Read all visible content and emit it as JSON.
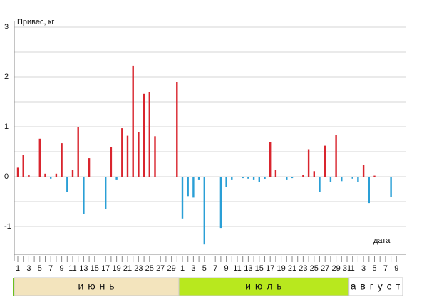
{
  "chart_data": {
    "type": "bar",
    "y_label": "Привес, кг",
    "x_label": "дата",
    "ylim": [
      -1.5,
      3
    ],
    "yticks": [
      -1,
      0,
      1,
      2,
      3
    ],
    "yminor": [
      -0.5,
      0.5,
      1.5,
      2.5
    ],
    "grid": true,
    "pos_color": "#d9252e",
    "neg_color": "#2a9fd6",
    "months": [
      {
        "label": "и ю н ь",
        "color": "#f3e4bd"
      },
      {
        "label": "и ю л ь",
        "color": "#b8e81e"
      },
      {
        "label": "а в г у с т",
        "color": "#ffffff"
      }
    ],
    "categories": [
      "1",
      null,
      "3",
      null,
      "5",
      null,
      "7",
      null,
      "9",
      null,
      "11",
      null,
      "13",
      null,
      "15",
      null,
      "17",
      null,
      "19",
      null,
      "21",
      null,
      "23",
      null,
      "25",
      null,
      "27",
      null,
      "29",
      null,
      "1",
      null,
      "3",
      null,
      "5",
      null,
      "7",
      null,
      "9",
      null,
      "11",
      null,
      "13",
      null,
      "15",
      null,
      "17",
      null,
      "19",
      null,
      "21",
      null,
      "23",
      null,
      "25",
      null,
      "27",
      null,
      "29",
      null,
      "31",
      "1",
      null,
      "3",
      null,
      "5",
      null,
      "7",
      null,
      "9"
    ],
    "values": [
      0.18,
      0.43,
      0.04,
      null,
      0.76,
      0.06,
      -0.04,
      0.06,
      0.67,
      -0.3,
      0.14,
      0.99,
      -0.75,
      0.37,
      null,
      null,
      -0.65,
      0.59,
      -0.07,
      0.97,
      0.82,
      2.23,
      0.9,
      1.66,
      1.7,
      0.81,
      null,
      null,
      null,
      1.9,
      -0.84,
      -0.39,
      -0.42,
      -0.07,
      -1.36,
      null,
      null,
      -1.03,
      -0.2,
      -0.07,
      null,
      -0.03,
      -0.04,
      -0.07,
      -0.11,
      -0.05,
      0.69,
      0.14,
      null,
      -0.07,
      -0.03,
      null,
      0.04,
      0.55,
      0.11,
      -0.31,
      0.62,
      -0.1,
      0.83,
      -0.09,
      null,
      -0.04,
      -0.1,
      0.24,
      -0.53,
      0.02,
      null,
      null,
      -0.4,
      null
    ]
  }
}
